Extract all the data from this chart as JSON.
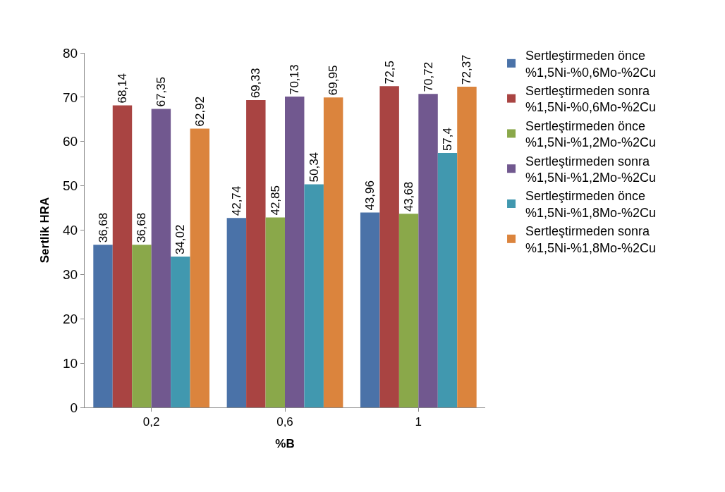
{
  "chart_data": {
    "type": "bar",
    "xlabel": "%B",
    "ylabel": "Sertlik HRA",
    "categories": [
      "0,2",
      "0,6",
      "1"
    ],
    "ylim": [
      0,
      80
    ],
    "yticks": [
      0,
      10,
      20,
      30,
      40,
      50,
      60,
      70,
      80
    ],
    "legend": "right",
    "series": [
      {
        "name": "Sertleştirmeden önce\n%1,5Ni-%0,6Mo-%2Cu",
        "color": "#4a72a8",
        "values": [
          36.68,
          42.74,
          43.96
        ],
        "value_labels": [
          "36,68",
          "42,74",
          "43,96"
        ]
      },
      {
        "name": "Sertleştirmeden sonra\n%1,5Ni-%0,6Mo-%2Cu",
        "color": "#a94442",
        "values": [
          68.14,
          69.33,
          72.5
        ],
        "value_labels": [
          "68,14",
          "69,33",
          "72,5"
        ]
      },
      {
        "name": "Sertleştirmeden önce\n%1,5Ni-%1,2Mo-%2Cu",
        "color": "#8aa84a",
        "values": [
          36.68,
          42.85,
          43.68
        ],
        "value_labels": [
          "36,68",
          "42,85",
          "43,68"
        ]
      },
      {
        "name": "Sertleştirmeden sonra\n%1,5Ni-%1,2Mo-%2Cu",
        "color": "#71588f",
        "values": [
          67.35,
          70.13,
          70.72
        ],
        "value_labels": [
          "67,35",
          "70,13",
          "70,72"
        ]
      },
      {
        "name": "Sertleştirmeden önce\n%1,5Ni-%1,8Mo-%2Cu",
        "color": "#4198af",
        "values": [
          34.02,
          50.34,
          57.4
        ],
        "value_labels": [
          "34,02",
          "50,34",
          "57,4"
        ]
      },
      {
        "name": "Sertleştirmeden sonra\n%1,5Ni-%1,8Mo-%2Cu",
        "color": "#db843d",
        "values": [
          62.92,
          69.95,
          72.37
        ],
        "value_labels": [
          "62,92",
          "69,95",
          "72,37"
        ]
      }
    ]
  }
}
